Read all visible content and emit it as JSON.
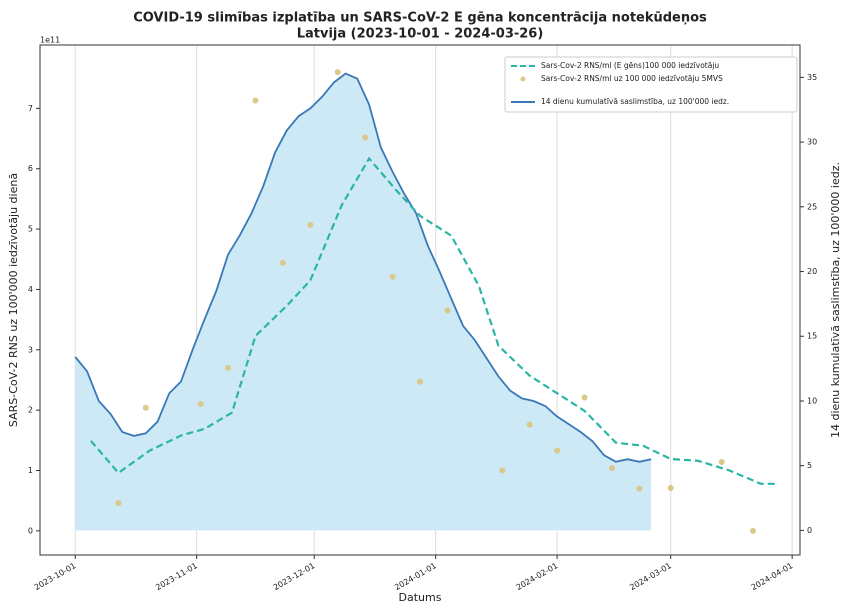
{
  "chart_data": {
    "type": "line",
    "title_lines": [
      "COVID-19 slimības izplatība un SARS-CoV-2 E gēna koncentrācija notekūdeņos",
      "Latvija (2023-10-01 - 2024-03-26)"
    ],
    "x_label": "Datums",
    "y_label": "SARS-CoV-2 RNS uz 100'000 iedzīvotāju dienā",
    "y2_label": "14 dienu kumulatīvā saslimstība, uz 100'000 iedz.",
    "y_offset_label": "1e11",
    "xlim": [
      "2023-09-22",
      "2024-04-03"
    ],
    "xticks": [
      "2023-10-01",
      "2023-11-01",
      "2023-12-01",
      "2024-01-01",
      "2024-02-01",
      "2024-03-01",
      "2024-04-01"
    ],
    "ylim": [
      -0.4,
      8.05
    ],
    "yticks": [
      0,
      1,
      2,
      3,
      4,
      5,
      6,
      7
    ],
    "y2lim": [
      -1.9,
      37.5
    ],
    "y2ticks": [
      0,
      5,
      10,
      15,
      20,
      25,
      30,
      35
    ],
    "grid": "x",
    "legend": "upper right",
    "series": [
      {
        "name": "Sars-Cov-2 RNS/ml (E gēns)100 000 iedzīvotāju",
        "color": "#2bb5a5",
        "kind": "line",
        "linestyle": "dashed",
        "axis": "y",
        "x": [
          "2023-10-05",
          "2023-10-12",
          "2023-10-20",
          "2023-10-28",
          "2023-11-03",
          "2023-11-10",
          "2023-11-16",
          "2023-11-24",
          "2023-11-30",
          "2023-12-08",
          "2023-12-15",
          "2023-12-22",
          "2023-12-28",
          "2024-01-05",
          "2024-01-12",
          "2024-01-17",
          "2024-01-25",
          "2024-02-08",
          "2024-02-16",
          "2024-02-23",
          "2024-03-01",
          "2024-03-08",
          "2024-03-16",
          "2024-03-24",
          "2024-03-28"
        ],
        "values": [
          1.49,
          0.96,
          1.33,
          1.58,
          1.69,
          1.96,
          3.23,
          3.73,
          4.15,
          5.39,
          6.17,
          5.64,
          5.22,
          4.89,
          4.06,
          3.07,
          2.57,
          1.99,
          1.46,
          1.41,
          1.19,
          1.16,
          1.0,
          0.78,
          0.78
        ]
      },
      {
        "name": "Sars-Cov-2 RNS/ml uz 100 000 iedzīvotāju 5MVS",
        "color": "#d9c98a",
        "kind": "scatter",
        "axis": "y",
        "x": [
          "2023-10-12",
          "2023-10-19",
          "2023-11-02",
          "2023-11-09",
          "2023-11-16",
          "2023-11-23",
          "2023-11-30",
          "2023-12-07",
          "2023-12-14",
          "2023-12-21",
          "2023-12-28",
          "2024-01-04",
          "2024-01-18",
          "2024-01-25",
          "2024-02-01",
          "2024-02-08",
          "2024-02-15",
          "2024-02-22",
          "2024-03-01",
          "2024-03-14",
          "2024-03-22"
        ],
        "values": [
          0.46,
          2.04,
          2.1,
          2.7,
          7.13,
          4.44,
          5.07,
          7.6,
          6.52,
          4.21,
          2.47,
          3.65,
          1.0,
          1.76,
          1.33,
          2.21,
          1.04,
          0.7,
          0.71,
          1.14,
          0
        ]
      },
      {
        "name": "14 dienu kumulatīvā saslimstība, uz 100'000 iedz.",
        "color": "#3a78b5",
        "kind": "line",
        "linestyle": "solid",
        "fill": "#cde9f5",
        "axis": "y2",
        "x": [
          "2023-10-01",
          "2023-10-04",
          "2023-10-07",
          "2023-10-10",
          "2023-10-13",
          "2023-10-16",
          "2023-10-19",
          "2023-10-22",
          "2023-10-25",
          "2023-10-28",
          "2023-10-31",
          "2023-11-03",
          "2023-11-06",
          "2023-11-09",
          "2023-11-12",
          "2023-11-15",
          "2023-11-18",
          "2023-11-21",
          "2023-11-24",
          "2023-11-27",
          "2023-11-30",
          "2023-12-03",
          "2023-12-06",
          "2023-12-09",
          "2023-12-12",
          "2023-12-15",
          "2023-12-18",
          "2023-12-21",
          "2023-12-24",
          "2023-12-27",
          "2023-12-30",
          "2024-01-02",
          "2024-01-05",
          "2024-01-08",
          "2024-01-11",
          "2024-01-14",
          "2024-01-17",
          "2024-01-20",
          "2024-01-23",
          "2024-01-26",
          "2024-01-29",
          "2024-02-01",
          "2024-02-04",
          "2024-02-07",
          "2024-02-10",
          "2024-02-13",
          "2024-02-16",
          "2024-02-19",
          "2024-02-22",
          "2024-02-25"
        ],
        "values": [
          13.4,
          12.3,
          10.0,
          9.0,
          7.6,
          7.3,
          7.5,
          8.4,
          10.6,
          11.5,
          14.0,
          16.3,
          18.5,
          21.3,
          22.8,
          24.5,
          26.6,
          29.2,
          30.9,
          32.0,
          32.6,
          33.5,
          34.6,
          35.3,
          34.9,
          32.9,
          29.6,
          27.7,
          26.0,
          24.5,
          22.0,
          20.0,
          17.9,
          15.8,
          14.7,
          13.3,
          11.9,
          10.8,
          10.2,
          10.0,
          9.6,
          8.8,
          8.2,
          7.6,
          6.9,
          5.8,
          5.3,
          5.5,
          5.3,
          5.5
        ]
      }
    ]
  }
}
